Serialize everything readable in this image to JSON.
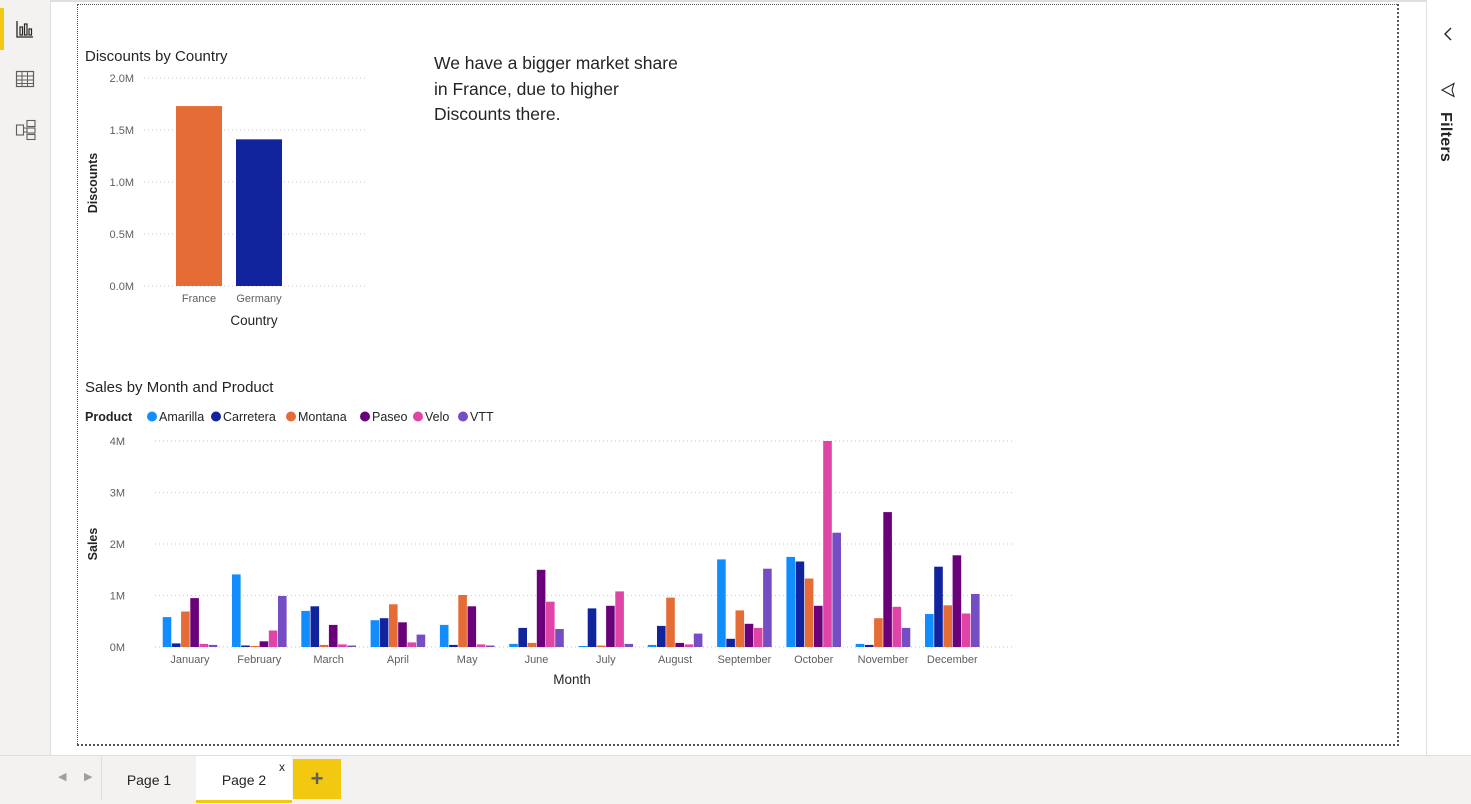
{
  "rail": {
    "items": [
      {
        "name": "report-view",
        "icon": "bar-chart-icon",
        "active": true
      },
      {
        "name": "data-view",
        "icon": "table-icon",
        "active": false
      },
      {
        "name": "model-view",
        "icon": "model-icon",
        "active": false
      }
    ]
  },
  "filters_pane": {
    "label": "Filters",
    "collapse_icon": "chevron-left-icon",
    "filter_icon": "funnel-icon"
  },
  "textbox": {
    "lines": [
      "We have a bigger market share",
      "in France, due to higher",
      "Discounts there."
    ]
  },
  "tabs": {
    "pages": [
      "Page 1",
      "Page 2"
    ],
    "active": "Page 2",
    "close_label": "x",
    "add_label": "+"
  },
  "chart_data": [
    {
      "type": "bar",
      "title": "Discounts by Country",
      "xlabel": "Country",
      "ylabel": "Discounts",
      "categories": [
        "France",
        "Germany"
      ],
      "values": [
        1730000,
        1410000
      ],
      "colors": [
        "#e66c37",
        "#12239e"
      ],
      "ylim": [
        0,
        2000000
      ],
      "yticks": [
        "0.0M",
        "0.5M",
        "1.0M",
        "1.5M",
        "2.0M"
      ],
      "grid": true
    },
    {
      "type": "bar",
      "title": "Sales by Month and Product",
      "xlabel": "Month",
      "ylabel": "Sales",
      "legend_title": "Product",
      "legend_position": "top-left",
      "categories": [
        "January",
        "February",
        "March",
        "April",
        "May",
        "June",
        "July",
        "August",
        "September",
        "October",
        "November",
        "December"
      ],
      "ylim": [
        0,
        4000000
      ],
      "yticks": [
        "0M",
        "1M",
        "2M",
        "3M",
        "4M"
      ],
      "grid": true,
      "series": [
        {
          "name": "Amarilla",
          "color": "#118dff",
          "values": [
            580000,
            1410000,
            700000,
            520000,
            430000,
            60000,
            20000,
            40000,
            1700000,
            1750000,
            60000,
            640000
          ]
        },
        {
          "name": "Carretera",
          "color": "#12239e",
          "values": [
            70000,
            30000,
            790000,
            560000,
            40000,
            370000,
            750000,
            410000,
            160000,
            1660000,
            40000,
            1560000
          ]
        },
        {
          "name": "Montana",
          "color": "#e66c37",
          "values": [
            690000,
            20000,
            40000,
            830000,
            1010000,
            80000,
            30000,
            960000,
            710000,
            1330000,
            560000,
            810000
          ]
        },
        {
          "name": "Paseo",
          "color": "#6b007b",
          "values": [
            950000,
            110000,
            430000,
            480000,
            790000,
            1500000,
            800000,
            80000,
            450000,
            800000,
            2620000,
            1780000
          ]
        },
        {
          "name": "Velo",
          "color": "#e044a7",
          "values": [
            60000,
            320000,
            50000,
            90000,
            50000,
            880000,
            1080000,
            50000,
            370000,
            4000000,
            780000,
            650000
          ]
        },
        {
          "name": "VTT",
          "color": "#744ec2",
          "values": [
            40000,
            990000,
            30000,
            240000,
            30000,
            350000,
            60000,
            260000,
            1520000,
            2220000,
            370000,
            1030000
          ]
        }
      ]
    }
  ]
}
